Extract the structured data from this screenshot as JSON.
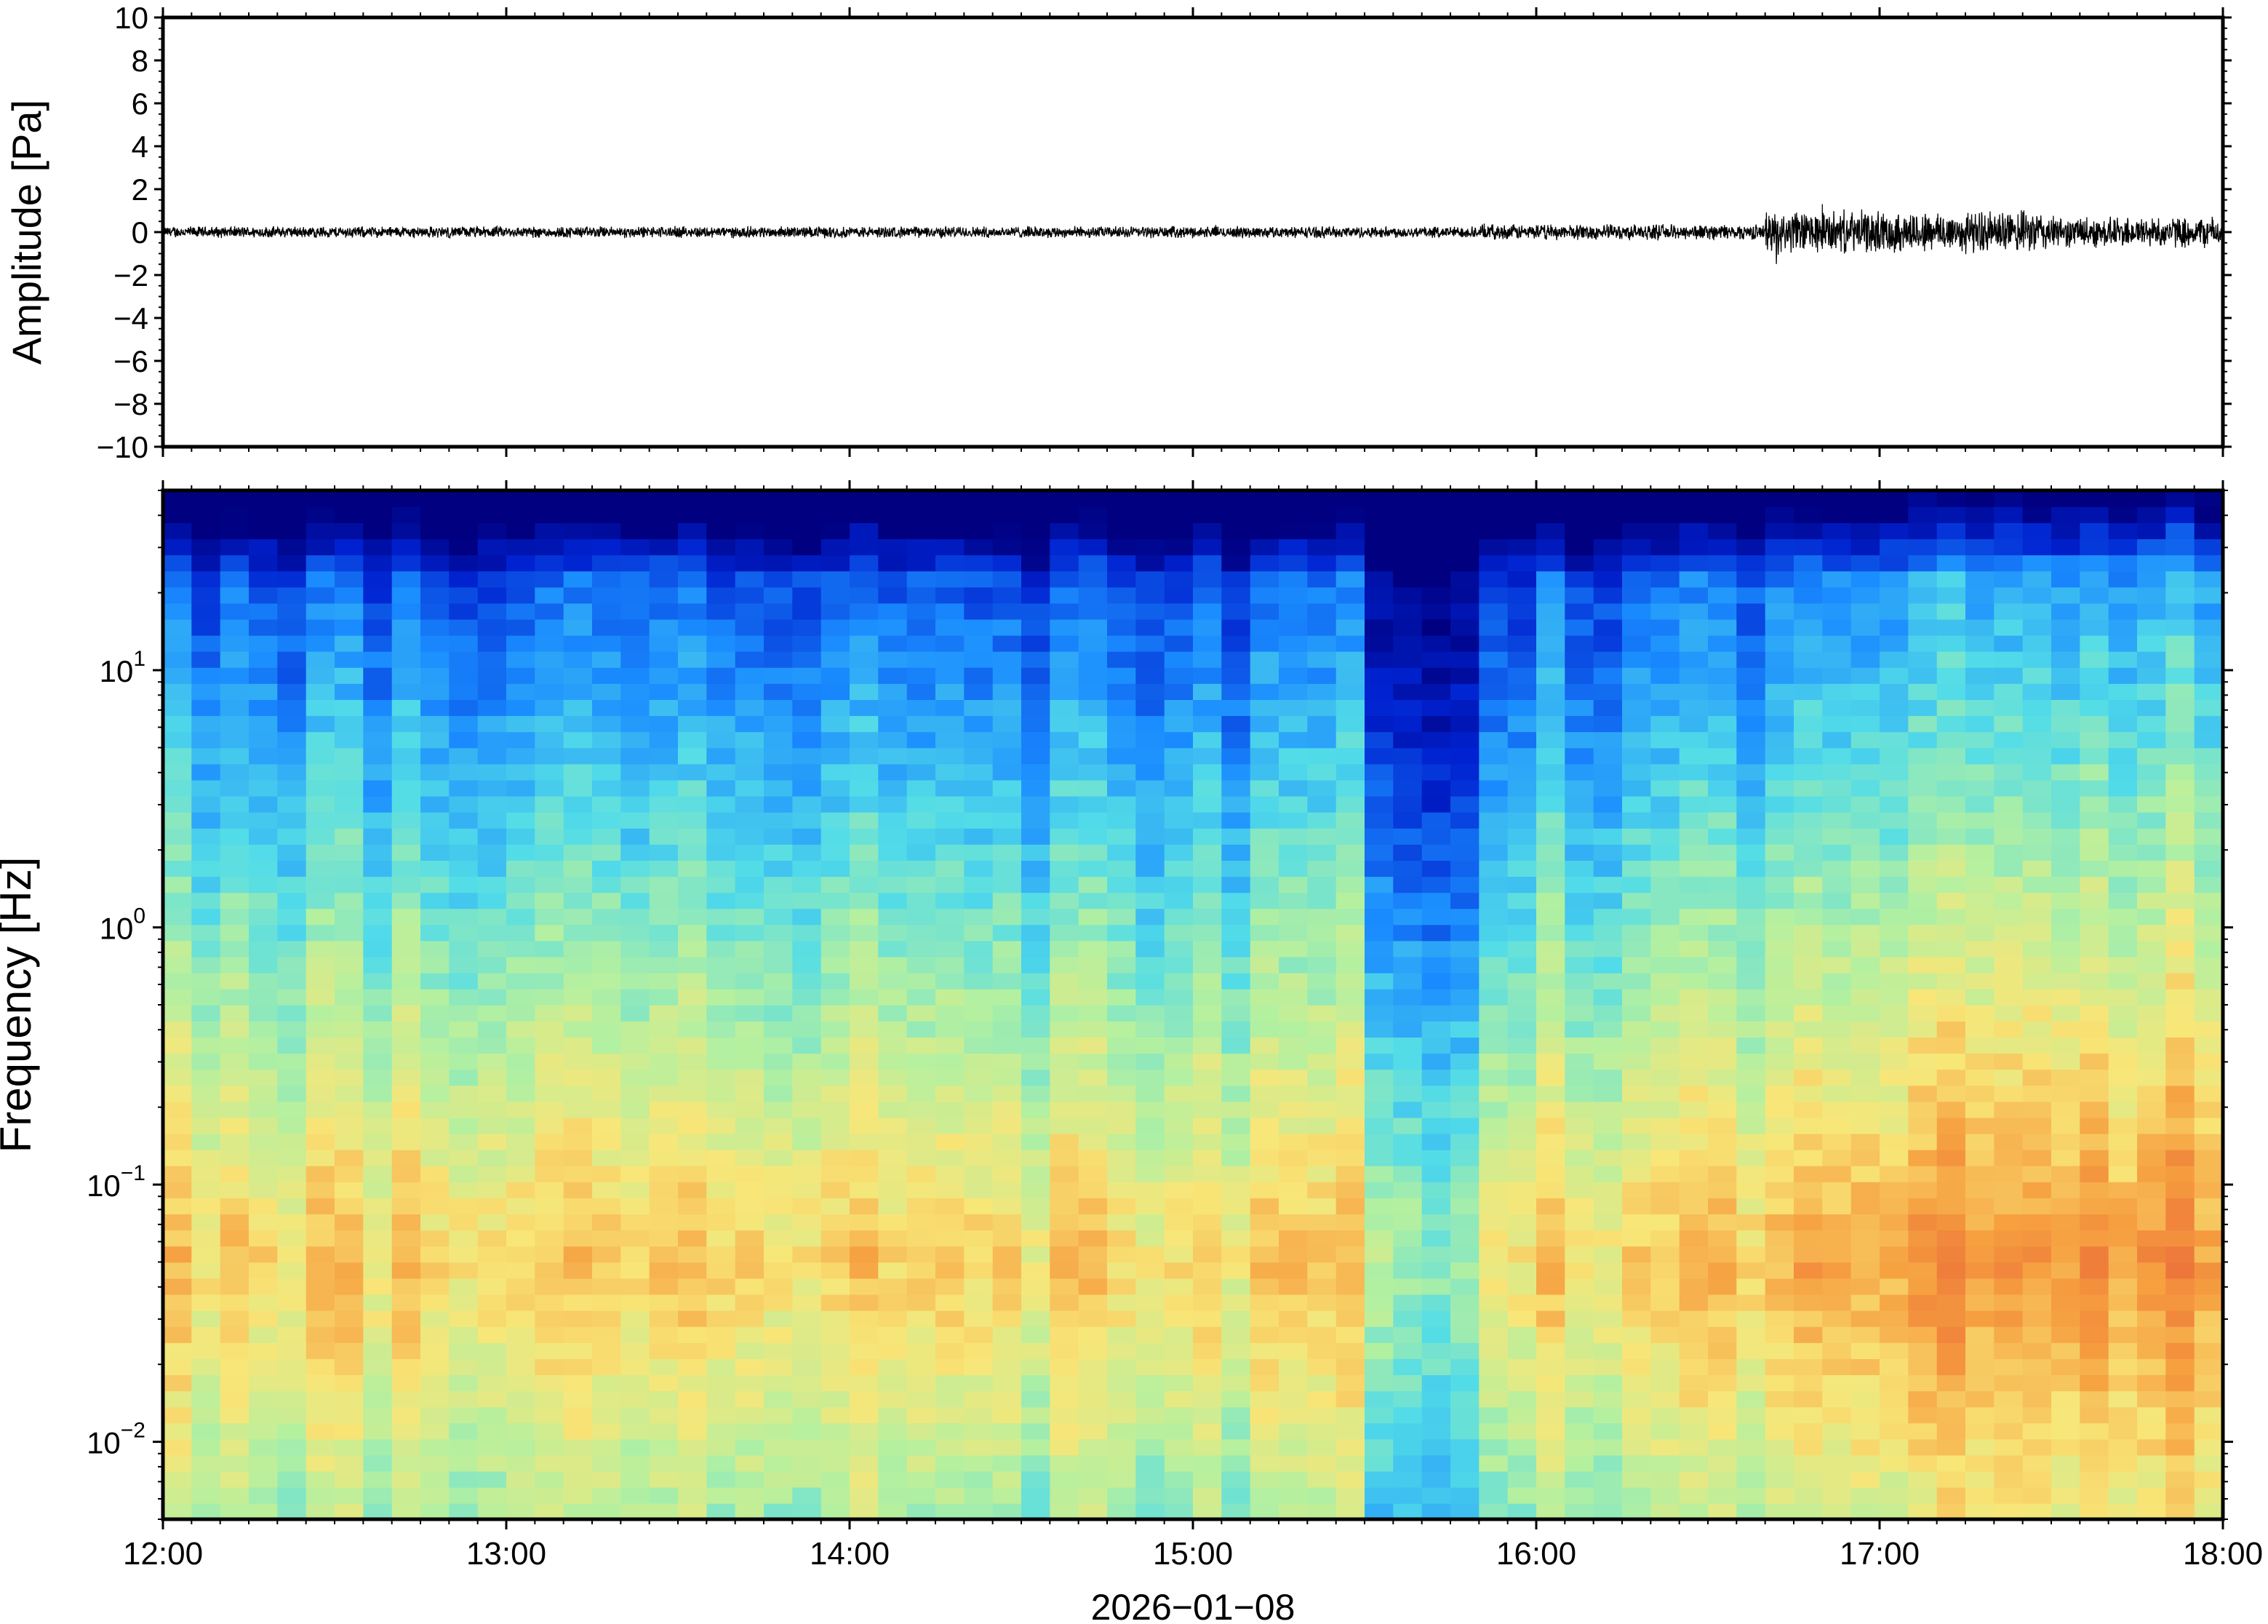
{
  "chart_data": [
    {
      "type": "line",
      "ylabel": "Amplitude [Pa]",
      "ylim": [
        -10,
        10
      ],
      "yticks": [
        "10",
        "8",
        "6",
        "4",
        "2",
        "0",
        "−2",
        "−4",
        "−6",
        "−8",
        "−10"
      ],
      "xlim": [
        "2026-01-08 12:00",
        "2026-01-08 18:00"
      ],
      "envelope_segments": [
        {
          "start": "12:00",
          "end": "15:50",
          "max_abs": 0.3
        },
        {
          "start": "15:50",
          "end": "16:40",
          "max_abs": 0.4
        },
        {
          "start": "16:40",
          "end": "17:30",
          "max_abs": 1.1
        },
        {
          "start": "17:30",
          "end": "18:00",
          "max_abs": 0.8
        }
      ],
      "peak": {
        "time": "16:50",
        "value": 1.3
      },
      "grid": false
    },
    {
      "type": "heatmap",
      "ylabel": "Frequency [Hz]",
      "yscale": "log",
      "ylim": [
        0.005,
        50
      ],
      "yticks": [
        {
          "base": "10",
          "exp": "1",
          "value": 10
        },
        {
          "base": "10",
          "exp": "0",
          "value": 1
        },
        {
          "base": "10",
          "exp": "−1",
          "value": 0.1
        },
        {
          "base": "10",
          "exp": "−2",
          "value": 0.01
        }
      ],
      "xlabel": "2026−01−08",
      "xticks": [
        "12:00",
        "13:00",
        "14:00",
        "15:00",
        "16:00",
        "17:00",
        "18:00"
      ],
      "colormap": "jet",
      "colors": [
        "#000080",
        "#0022d0",
        "#1a8cff",
        "#52dce8",
        "#b4f0a0",
        "#f8e678",
        "#f6a040",
        "#e85c36"
      ],
      "grid": false
    }
  ]
}
